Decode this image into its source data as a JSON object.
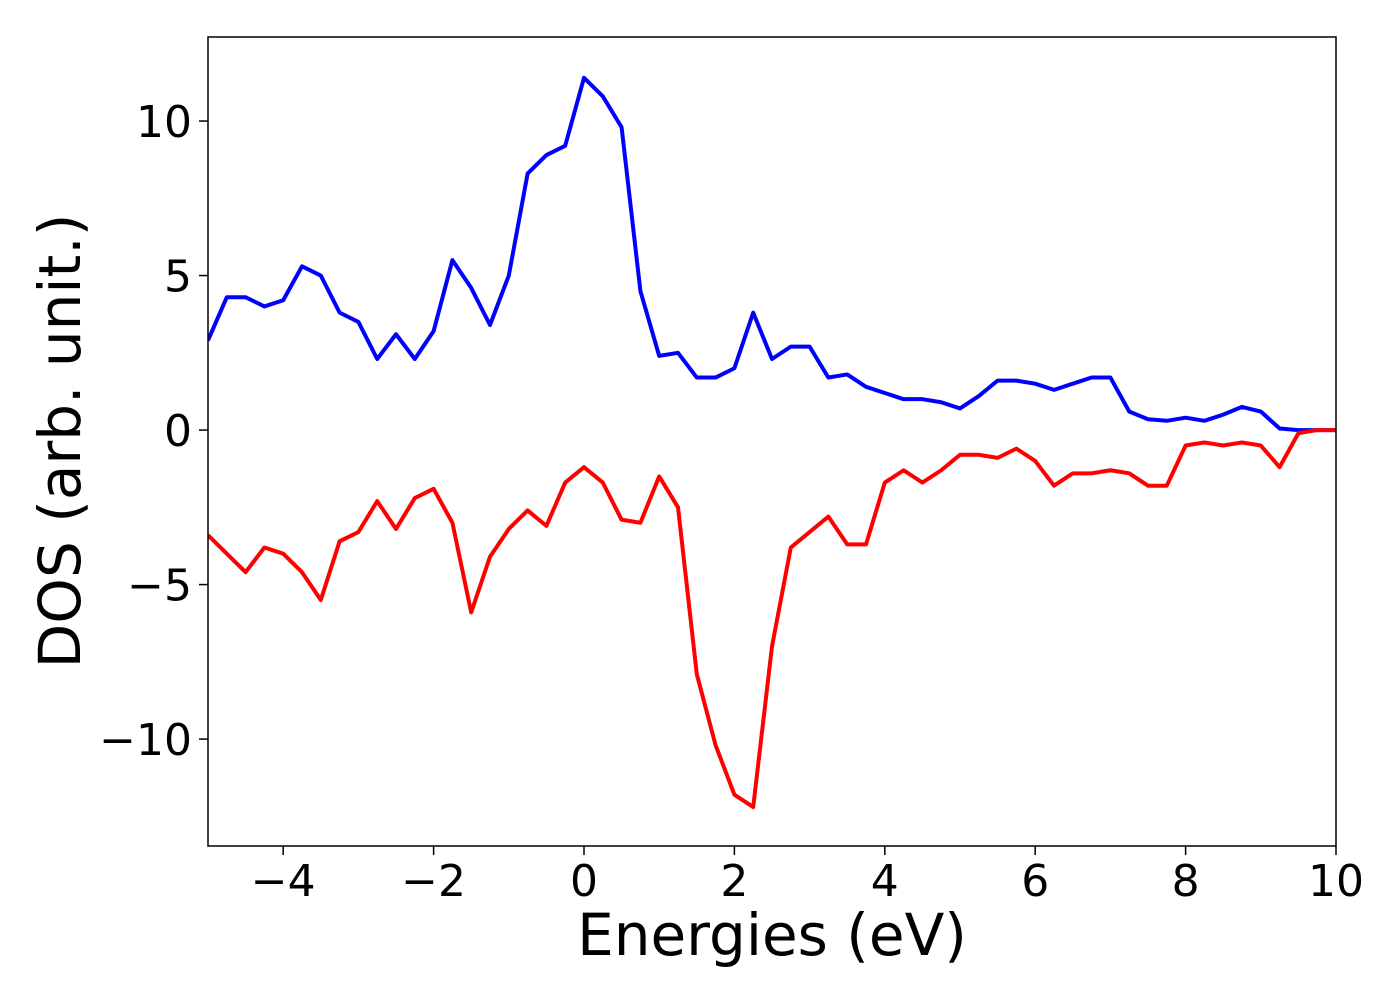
{
  "chart_data": {
    "type": "line",
    "xlabel": "Energies (eV)",
    "ylabel": "DOS (arb. unit.)",
    "x": [
      -5,
      -4.75,
      -4.5,
      -4.25,
      -4,
      -3.75,
      -3.5,
      -3.25,
      -3,
      -2.75,
      -2.5,
      -2.25,
      -2,
      -1.75,
      -1.5,
      -1.25,
      -1,
      -0.75,
      -0.5,
      -0.25,
      0,
      0.25,
      0.5,
      0.75,
      1,
      1.25,
      1.5,
      1.75,
      2,
      2.25,
      2.5,
      2.75,
      3,
      3.25,
      3.5,
      3.75,
      4,
      4.25,
      4.5,
      4.75,
      5,
      5.25,
      5.5,
      5.75,
      6,
      6.25,
      6.5,
      6.75,
      7,
      7.25,
      7.5,
      7.75,
      8,
      8.25,
      8.5,
      8.75,
      9,
      9.25,
      9.5,
      9.75,
      10
    ],
    "series": [
      {
        "color": "#0000ff",
        "values": [
          2.9,
          4.3,
          4.3,
          4.0,
          4.2,
          5.3,
          5.0,
          3.8,
          3.5,
          2.3,
          3.1,
          2.3,
          3.2,
          5.5,
          4.6,
          3.4,
          5.0,
          8.3,
          8.9,
          9.2,
          11.4,
          10.8,
          9.8,
          4.5,
          2.4,
          2.5,
          1.7,
          1.7,
          2.0,
          3.8,
          2.3,
          2.7,
          2.7,
          1.7,
          1.8,
          1.4,
          1.2,
          1.0,
          1.0,
          0.9,
          0.7,
          1.1,
          1.6,
          1.6,
          1.5,
          1.3,
          1.5,
          1.7,
          1.7,
          0.6,
          0.35,
          0.3,
          0.4,
          0.3,
          0.5,
          0.75,
          0.6,
          0.05,
          0,
          0,
          0
        ]
      },
      {
        "color": "#ff0000",
        "values": [
          -3.4,
          -4.0,
          -4.6,
          -3.8,
          -4.0,
          -4.6,
          -5.5,
          -3.6,
          -3.3,
          -2.3,
          -3.2,
          -2.2,
          -1.9,
          -3.0,
          -5.9,
          -4.1,
          -3.2,
          -2.6,
          -3.1,
          -1.7,
          -1.2,
          -1.7,
          -2.9,
          -3.0,
          -1.5,
          -2.5,
          -7.9,
          -10.2,
          -11.8,
          -12.2,
          -7.0,
          -3.8,
          -3.3,
          -2.8,
          -3.7,
          -3.7,
          -1.7,
          -1.3,
          -1.7,
          -1.3,
          -0.8,
          -0.8,
          -0.9,
          -0.6,
          -1.0,
          -1.8,
          -1.4,
          -1.4,
          -1.3,
          -1.4,
          -1.8,
          -1.8,
          -0.5,
          -0.4,
          -0.5,
          -0.4,
          -0.5,
          -1.2,
          -0.1,
          0,
          0
        ]
      }
    ],
    "xlim": [
      -5,
      10
    ],
    "ylim": [
      -13.46,
      12.72
    ],
    "xticks": [
      {
        "value": -4,
        "label": "−4"
      },
      {
        "value": -2,
        "label": "−2"
      },
      0,
      2,
      4,
      6,
      8,
      10
    ],
    "yticks": [
      {
        "value": -10,
        "label": "−10"
      },
      {
        "value": -5,
        "label": "−5"
      },
      0,
      5,
      10
    ],
    "grid": false
  }
}
